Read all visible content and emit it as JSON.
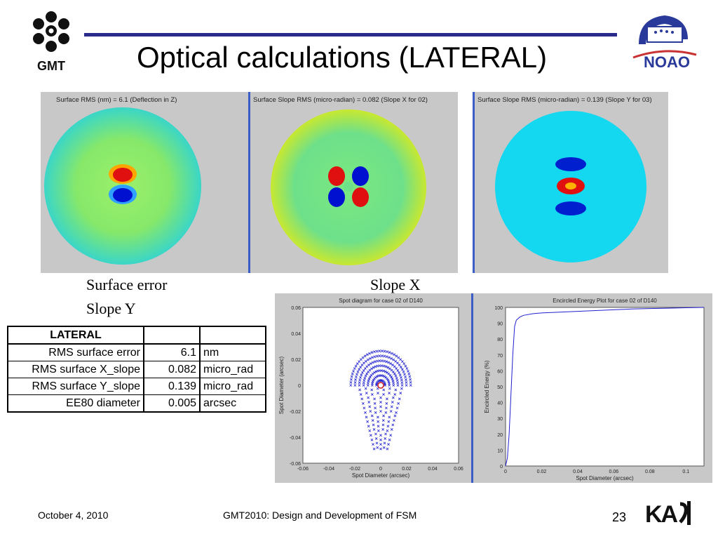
{
  "slide": {
    "title": "Optical calculations (LATERAL)",
    "logo_left_text": "GMT",
    "logo_right_text": "NOAO",
    "logo_bottom_text": "KASI"
  },
  "maps": {
    "panels": [
      {
        "caption": "Surface RMS (nm) =    6.1 (Deflection in Z)"
      },
      {
        "caption": "Surface Slope RMS (micro-radian) =  0.082 (Slope X for 02)"
      },
      {
        "caption": "Surface Slope RMS (micro-radian) =  0.139 (Slope Y for 03)"
      }
    ]
  },
  "captions": {
    "surface_error": "Surface error",
    "slope_x": "Slope X",
    "slope_y": "Slope Y"
  },
  "table": {
    "header": "LATERAL",
    "rows": [
      {
        "label": "RMS surface error",
        "value": "6.1",
        "unit": "nm"
      },
      {
        "label": "RMS surface X_slope",
        "value": "0.082",
        "unit": "micro_rad"
      },
      {
        "label": "RMS surface Y_slope",
        "value": "0.139",
        "unit": "micro_rad"
      },
      {
        "label": "EE80 diameter",
        "value": "0.005",
        "unit": "arcsec"
      }
    ]
  },
  "chart_data": [
    {
      "type": "scatter",
      "title": "Spot diagram for case 02 of D140",
      "xlabel": "Spot Diameter (arcsec)",
      "ylabel": "Spot Diameter (arcsec)",
      "xlim": [
        -0.06,
        0.06
      ],
      "ylim": [
        -0.06,
        0.06
      ],
      "xticks": [
        "-0.06",
        "-0.04",
        "-0.02",
        "0",
        "0.02",
        "0.04",
        "0.06"
      ],
      "yticks": [
        "0.06",
        "0.04",
        "0.02",
        "0",
        "-0.02",
        "-0.04",
        "-0.06"
      ],
      "series": [
        {
          "color": "#2020d0",
          "marker": "x"
        }
      ],
      "annotation": {
        "shape": "circle",
        "x": 0,
        "y": 0,
        "color": "#d02020"
      }
    },
    {
      "type": "line",
      "title": "Encircled Energy Plot for case 02 of D140",
      "xlabel": "Spot Diameter (arcsec)",
      "ylabel": "Encircled Energy (%)",
      "xlim": [
        0,
        0.11
      ],
      "ylim": [
        0,
        100
      ],
      "xticks": [
        "0",
        "0.02",
        "0.04",
        "0.06",
        "0.08",
        "0.1"
      ],
      "yticks": [
        "100",
        "90",
        "80",
        "70",
        "60",
        "50",
        "40",
        "30",
        "20",
        "10",
        "0"
      ],
      "series": [
        {
          "color": "#2020d0",
          "x": [
            0,
            0.001,
            0.002,
            0.003,
            0.004,
            0.005,
            0.006,
            0.008,
            0.01,
            0.015,
            0.02,
            0.03,
            0.04,
            0.05,
            0.06,
            0.07,
            0.08,
            0.09,
            0.1,
            0.11
          ],
          "y": [
            0,
            5,
            20,
            45,
            70,
            88,
            92,
            94,
            95,
            96,
            96.5,
            97,
            97.5,
            98,
            98.5,
            99,
            99.3,
            99.5,
            99.8,
            100
          ]
        }
      ]
    }
  ],
  "footer": {
    "date": "October 4, 2010",
    "center": "GMT2010: Design and Development of FSM",
    "page": "23"
  }
}
